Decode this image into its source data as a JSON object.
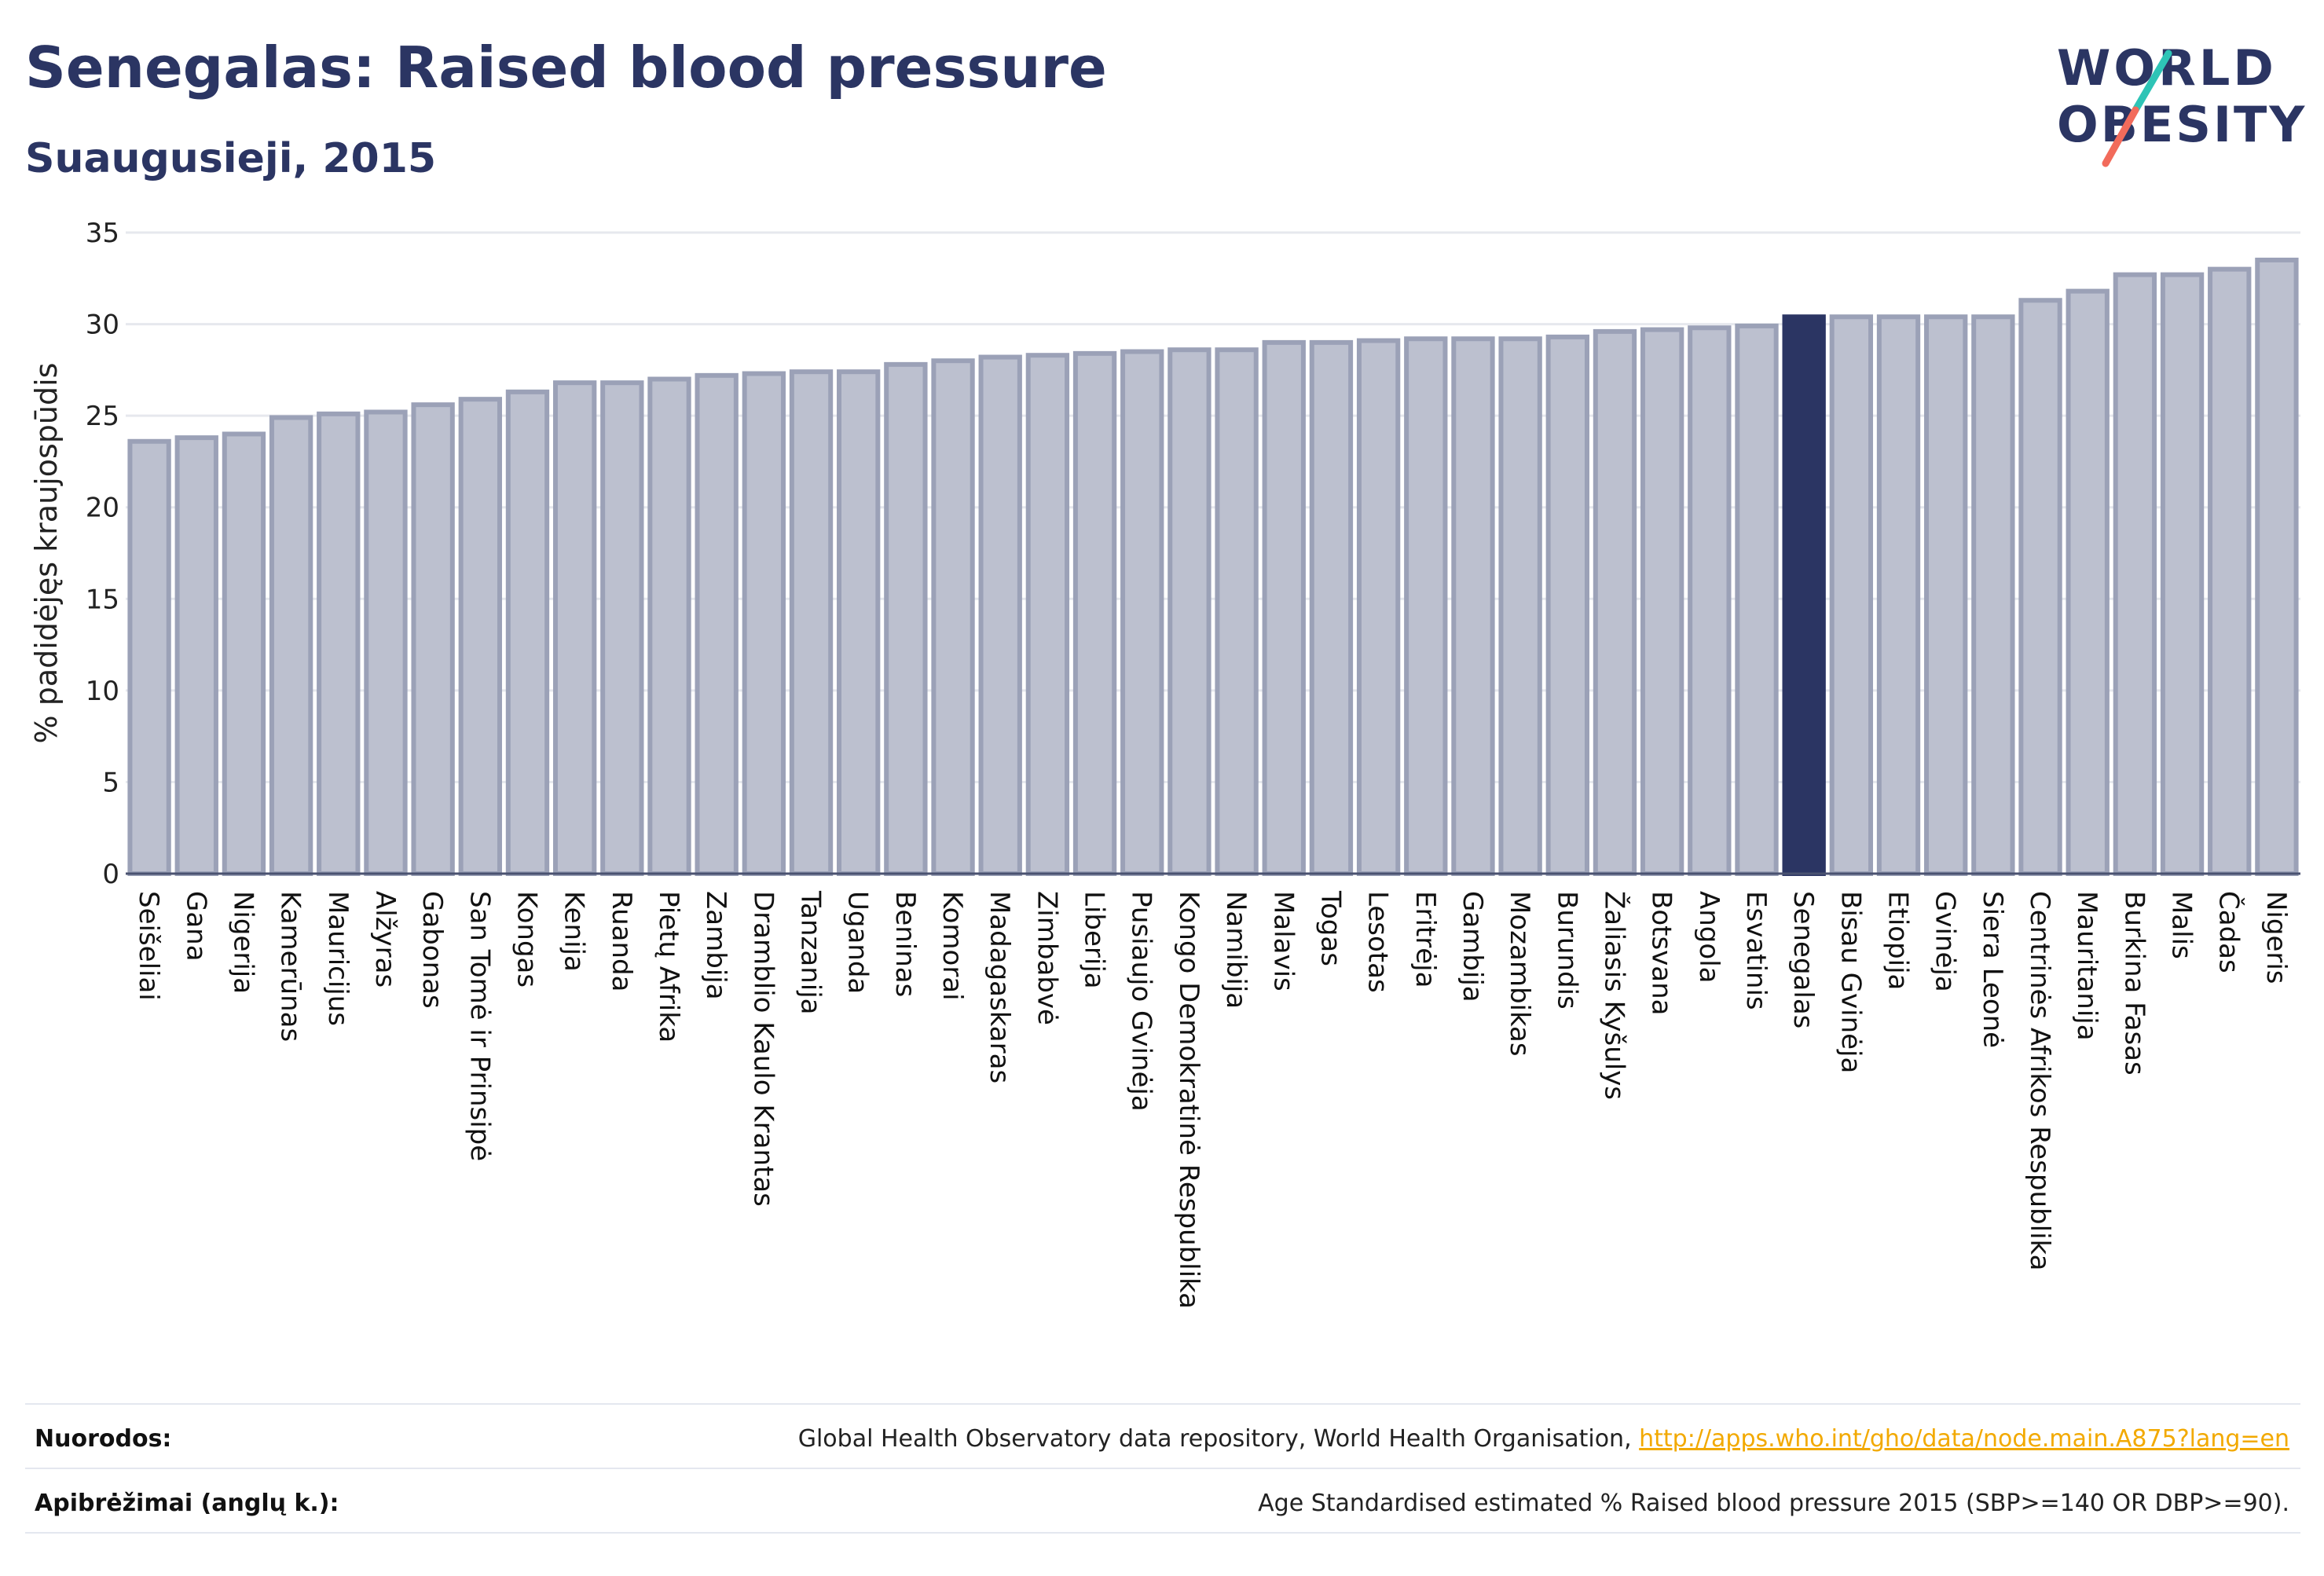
{
  "header": {
    "title": "Senegalas: Raised blood pressure",
    "subtitle": "Suaugusieji, 2015"
  },
  "logo": {
    "line1": "WORLD",
    "line2": "OBESITY",
    "accent_teal": "#2ec4b6",
    "accent_coral": "#f26b5b"
  },
  "colors": {
    "bar_fill": "#bcc0cf",
    "bar_stroke": "#9ba1b7",
    "highlight": "#2b3563",
    "grid": "#e6e8ee"
  },
  "chart_data": {
    "type": "bar",
    "title": "",
    "xlabel": "",
    "ylabel": "% padidėjęs kraujospūdis",
    "ylim": [
      0,
      35
    ],
    "yticks": [
      0,
      5,
      10,
      15,
      20,
      25,
      30,
      35
    ],
    "grid": true,
    "highlight_category": "Senegalas",
    "categories": [
      "Seišeliai",
      "Gana",
      "Nigerija",
      "Kamerūnas",
      "Mauricijus",
      "Alžyras",
      "Gabonas",
      "San Tomė ir Prinsipė",
      "Kongas",
      "Kenija",
      "Ruanda",
      "Pietų Afrika",
      "Zambija",
      "Dramblio Kaulo Krantas",
      "Tanzanija",
      "Uganda",
      "Beninas",
      "Komorai",
      "Madagaskaras",
      "Zimbabvė",
      "Liberija",
      "Pusiaujo Gvinėja",
      "Kongo Demokratinė Respublika",
      "Namibija",
      "Malavis",
      "Togas",
      "Lesotas",
      "Eritrėja",
      "Gambija",
      "Mozambikas",
      "Burundis",
      "Žaliasis Kyšulys",
      "Botsvana",
      "Angola",
      "Esvatinis",
      "Senegalas",
      "Bisau Gvinėja",
      "Etiopija",
      "Gvinėja",
      "Siera Leonė",
      "Centrinės Afrikos Respublika",
      "Mauritanija",
      "Burkina Fasas",
      "Malis",
      "Čadas",
      "Nigeris"
    ],
    "values": [
      23.6,
      23.8,
      24.0,
      24.9,
      25.1,
      25.2,
      25.6,
      25.9,
      26.3,
      26.8,
      26.8,
      27.0,
      27.2,
      27.3,
      27.4,
      27.4,
      27.8,
      28.0,
      28.2,
      28.3,
      28.4,
      28.5,
      28.6,
      28.6,
      29.0,
      29.0,
      29.1,
      29.2,
      29.2,
      29.2,
      29.3,
      29.6,
      29.7,
      29.8,
      29.9,
      30.4,
      30.4,
      30.4,
      30.4,
      30.4,
      31.3,
      31.8,
      32.7,
      32.7,
      33.0,
      33.5
    ]
  },
  "footer": {
    "references_label": "Nuorodos:",
    "references_text": "Global Health Observatory data repository, World Health Organisation, ",
    "references_link": "http://apps.who.int/gho/data/node.main.A875?lang=en",
    "definitions_label": "Apibrėžimai (anglų k.):",
    "definitions_text": "Age Standardised estimated % Raised blood pressure 2015 (SBP>=140 OR DBP>=90)."
  }
}
